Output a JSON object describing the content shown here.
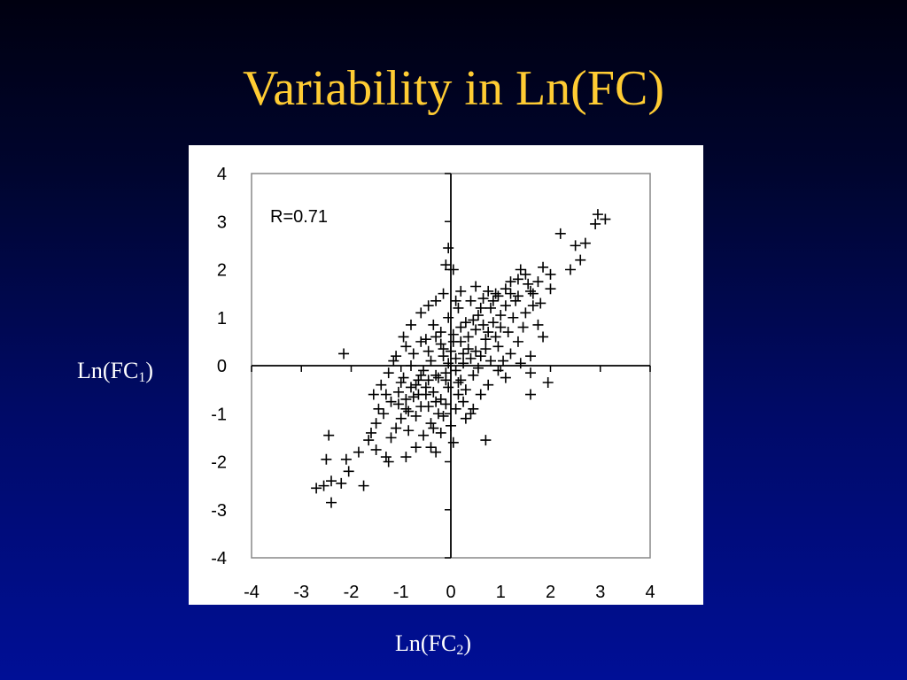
{
  "slide": {
    "title": "Variability in Ln(FC)",
    "background_top": "#000010",
    "background_bottom": "#000f96",
    "title_color": "#ffcc33"
  },
  "axis_captions": {
    "y_base": "Ln(FC",
    "y_sub": "1",
    "y_close": ")",
    "x_base": "Ln(FC",
    "x_sub": "2",
    "x_close": ")"
  },
  "chart_data": {
    "type": "scatter",
    "title": "",
    "xlabel": "Ln(FC2)",
    "ylabel": "Ln(FC1)",
    "xlim": [
      -4,
      4
    ],
    "ylim": [
      -4,
      4
    ],
    "x_ticks": [
      -4,
      -3,
      -2,
      -1,
      0,
      1,
      2,
      3,
      4
    ],
    "y_ticks": [
      -4,
      -3,
      -2,
      -1,
      0,
      1,
      2,
      3,
      4
    ],
    "x_tick_labels": [
      "-4",
      "-3",
      "-2",
      "-1",
      "0",
      "1",
      "2",
      "3",
      "4"
    ],
    "y_tick_labels": [
      "-4",
      "-3",
      "-2",
      "-1",
      "0",
      "1",
      "2",
      "3",
      "4"
    ],
    "annotation": "R=0.71",
    "marker": "+",
    "grid": false,
    "series": [
      {
        "points": [
          [
            2.95,
            3.15
          ],
          [
            3.1,
            3.05
          ],
          [
            2.9,
            2.95
          ],
          [
            2.2,
            2.75
          ],
          [
            2.7,
            2.55
          ],
          [
            2.5,
            2.5
          ],
          [
            2.6,
            2.2
          ],
          [
            2.4,
            2.0
          ],
          [
            1.85,
            2.05
          ],
          [
            2.0,
            1.9
          ],
          [
            1.4,
            2.0
          ],
          [
            1.5,
            1.9
          ],
          [
            1.75,
            1.75
          ],
          [
            2.0,
            1.6
          ],
          [
            1.2,
            1.75
          ],
          [
            1.1,
            1.6
          ],
          [
            1.6,
            1.55
          ],
          [
            1.35,
            1.45
          ],
          [
            0.9,
            1.5
          ],
          [
            1.8,
            1.3
          ],
          [
            1.65,
            1.25
          ],
          [
            1.75,
            0.85
          ],
          [
            1.85,
            0.6
          ],
          [
            1.6,
            0.2
          ],
          [
            1.4,
            0.05
          ],
          [
            1.6,
            -0.15
          ],
          [
            1.95,
            -0.35
          ],
          [
            1.6,
            -0.6
          ],
          [
            0.7,
            -1.55
          ],
          [
            0.4,
            -1.0
          ],
          [
            -0.05,
            2.45
          ],
          [
            -0.1,
            2.1
          ],
          [
            0.05,
            2.0
          ],
          [
            -2.15,
            0.25
          ],
          [
            -1.15,
            0.1
          ],
          [
            -2.45,
            -1.45
          ],
          [
            -2.5,
            -1.95
          ],
          [
            -2.4,
            -2.4
          ],
          [
            -2.55,
            -2.5
          ],
          [
            -2.7,
            -2.55
          ],
          [
            -2.4,
            -2.85
          ],
          [
            -2.2,
            -2.45
          ],
          [
            -2.1,
            -1.95
          ],
          [
            -2.05,
            -2.2
          ],
          [
            -1.85,
            -1.8
          ],
          [
            -1.75,
            -2.5
          ],
          [
            -1.65,
            -1.55
          ],
          [
            -1.5,
            -1.75
          ],
          [
            -1.3,
            -1.9
          ],
          [
            -1.25,
            -2.0
          ],
          [
            -0.9,
            -1.9
          ],
          [
            -0.4,
            -1.7
          ],
          [
            -0.3,
            -1.8
          ],
          [
            0.05,
            -1.6
          ],
          [
            -0.2,
            -1.4
          ],
          [
            -1.5,
            -1.2
          ],
          [
            -1.35,
            -1.0
          ],
          [
            -1.1,
            -1.3
          ],
          [
            -1.55,
            -0.6
          ],
          [
            -1.4,
            -0.4
          ],
          [
            -1.2,
            -0.75
          ],
          [
            -1.05,
            -0.55
          ],
          [
            -0.95,
            -0.25
          ],
          [
            -0.8,
            0.0
          ],
          [
            -0.7,
            -0.4
          ],
          [
            -0.6,
            -0.85
          ],
          [
            -0.5,
            -0.6
          ],
          [
            -0.4,
            -1.2
          ],
          [
            -0.3,
            -0.2
          ],
          [
            -0.2,
            -0.7
          ],
          [
            -0.15,
            0.2
          ],
          [
            -0.05,
            -0.45
          ],
          [
            0.1,
            -0.9
          ],
          [
            0.2,
            -0.3
          ],
          [
            0.3,
            -1.1
          ],
          [
            -1.0,
            -1.1
          ],
          [
            -0.85,
            -0.95
          ],
          [
            -0.75,
            -0.65
          ],
          [
            -0.65,
            -0.3
          ],
          [
            -0.55,
            -0.1
          ],
          [
            -0.45,
            -0.85
          ],
          [
            -0.35,
            -0.55
          ],
          [
            -0.25,
            -1.0
          ],
          [
            -0.1,
            -0.3
          ],
          [
            0.0,
            -1.25
          ],
          [
            0.15,
            -0.6
          ],
          [
            -1.0,
            -0.35
          ],
          [
            -0.9,
            -0.7
          ],
          [
            -0.8,
            -0.45
          ],
          [
            -0.7,
            -1.05
          ],
          [
            -0.6,
            -0.2
          ],
          [
            -0.5,
            -0.45
          ],
          [
            -0.4,
            0.1
          ],
          [
            -0.3,
            -0.75
          ],
          [
            -0.2,
            0.45
          ],
          [
            -0.1,
            -0.15
          ],
          [
            0.0,
            0.3
          ],
          [
            0.1,
            -0.1
          ],
          [
            0.2,
            0.5
          ],
          [
            0.25,
            0.05
          ],
          [
            0.35,
            0.35
          ],
          [
            0.45,
            -0.2
          ],
          [
            0.5,
            0.75
          ],
          [
            0.6,
            0.2
          ],
          [
            0.7,
            0.55
          ],
          [
            0.75,
            -0.4
          ],
          [
            0.85,
            0.9
          ],
          [
            0.95,
            0.4
          ],
          [
            1.05,
            0.1
          ],
          [
            1.15,
            0.7
          ],
          [
            1.25,
            1.0
          ],
          [
            1.35,
            0.5
          ],
          [
            -0.5,
            0.55
          ],
          [
            -0.35,
            0.85
          ],
          [
            -0.2,
            0.7
          ],
          [
            -0.05,
            1.0
          ],
          [
            0.05,
            0.65
          ],
          [
            0.15,
            1.2
          ],
          [
            0.3,
            0.9
          ],
          [
            0.4,
            1.35
          ],
          [
            0.55,
            1.05
          ],
          [
            0.65,
            1.4
          ],
          [
            0.8,
            1.2
          ],
          [
            0.95,
            1.45
          ],
          [
            1.1,
            1.25
          ],
          [
            1.3,
            1.35
          ],
          [
            -0.6,
            1.1
          ],
          [
            -0.45,
            1.25
          ],
          [
            -0.3,
            1.35
          ],
          [
            -0.15,
            1.5
          ],
          [
            0.2,
            1.55
          ],
          [
            0.5,
            1.65
          ],
          [
            0.75,
            1.55
          ],
          [
            1.0,
            0.8
          ],
          [
            1.2,
            0.25
          ],
          [
            1.45,
            0.8
          ],
          [
            -0.9,
            0.4
          ],
          [
            -0.75,
            0.25
          ],
          [
            -0.6,
            0.5
          ],
          [
            -0.45,
            0.3
          ],
          [
            -0.3,
            0.6
          ],
          [
            -0.15,
            0.35
          ],
          [
            0.05,
            0.5
          ],
          [
            0.2,
            0.8
          ],
          [
            0.35,
            0.6
          ],
          [
            0.5,
            0.3
          ],
          [
            0.65,
            0.85
          ],
          [
            0.8,
            0.1
          ],
          [
            0.95,
            -0.1
          ],
          [
            1.1,
            -0.25
          ],
          [
            0.6,
            -0.6
          ],
          [
            0.45,
            -0.9
          ],
          [
            0.3,
            -0.5
          ],
          [
            0.15,
            -0.35
          ],
          [
            -1.25,
            -0.15
          ],
          [
            -1.1,
            0.2
          ],
          [
            -0.95,
            0.6
          ],
          [
            -0.8,
            0.85
          ],
          [
            -1.3,
            -0.6
          ],
          [
            -1.45,
            -0.9
          ],
          [
            -1.6,
            -1.4
          ],
          [
            -1.2,
            -1.5
          ],
          [
            -0.85,
            -1.35
          ],
          [
            -0.55,
            -1.45
          ],
          [
            -0.7,
            -1.7
          ],
          [
            -0.15,
            -1.05
          ],
          [
            0.25,
            -0.75
          ],
          [
            0.55,
            -0.05
          ],
          [
            0.7,
            0.35
          ],
          [
            0.9,
            0.6
          ],
          [
            1.0,
            1.05
          ],
          [
            0.85,
            1.35
          ],
          [
            0.6,
            1.2
          ],
          [
            0.45,
            0.95
          ],
          [
            0.25,
            0.25
          ],
          [
            0.1,
            0.15
          ],
          [
            -0.05,
            0.05
          ],
          [
            -0.25,
            -0.25
          ],
          [
            -0.45,
            -0.3
          ],
          [
            -0.65,
            -0.6
          ],
          [
            -0.9,
            -0.9
          ],
          [
            -1.05,
            -0.8
          ],
          [
            -0.35,
            -1.3
          ],
          [
            -0.1,
            -0.8
          ],
          [
            0.4,
            0.15
          ],
          [
            0.75,
            0.7
          ],
          [
            1.2,
            1.5
          ],
          [
            1.5,
            1.1
          ],
          [
            1.65,
            1.5
          ],
          [
            1.55,
            1.7
          ],
          [
            1.35,
            1.8
          ],
          [
            0.1,
            1.35
          ]
        ]
      }
    ]
  }
}
